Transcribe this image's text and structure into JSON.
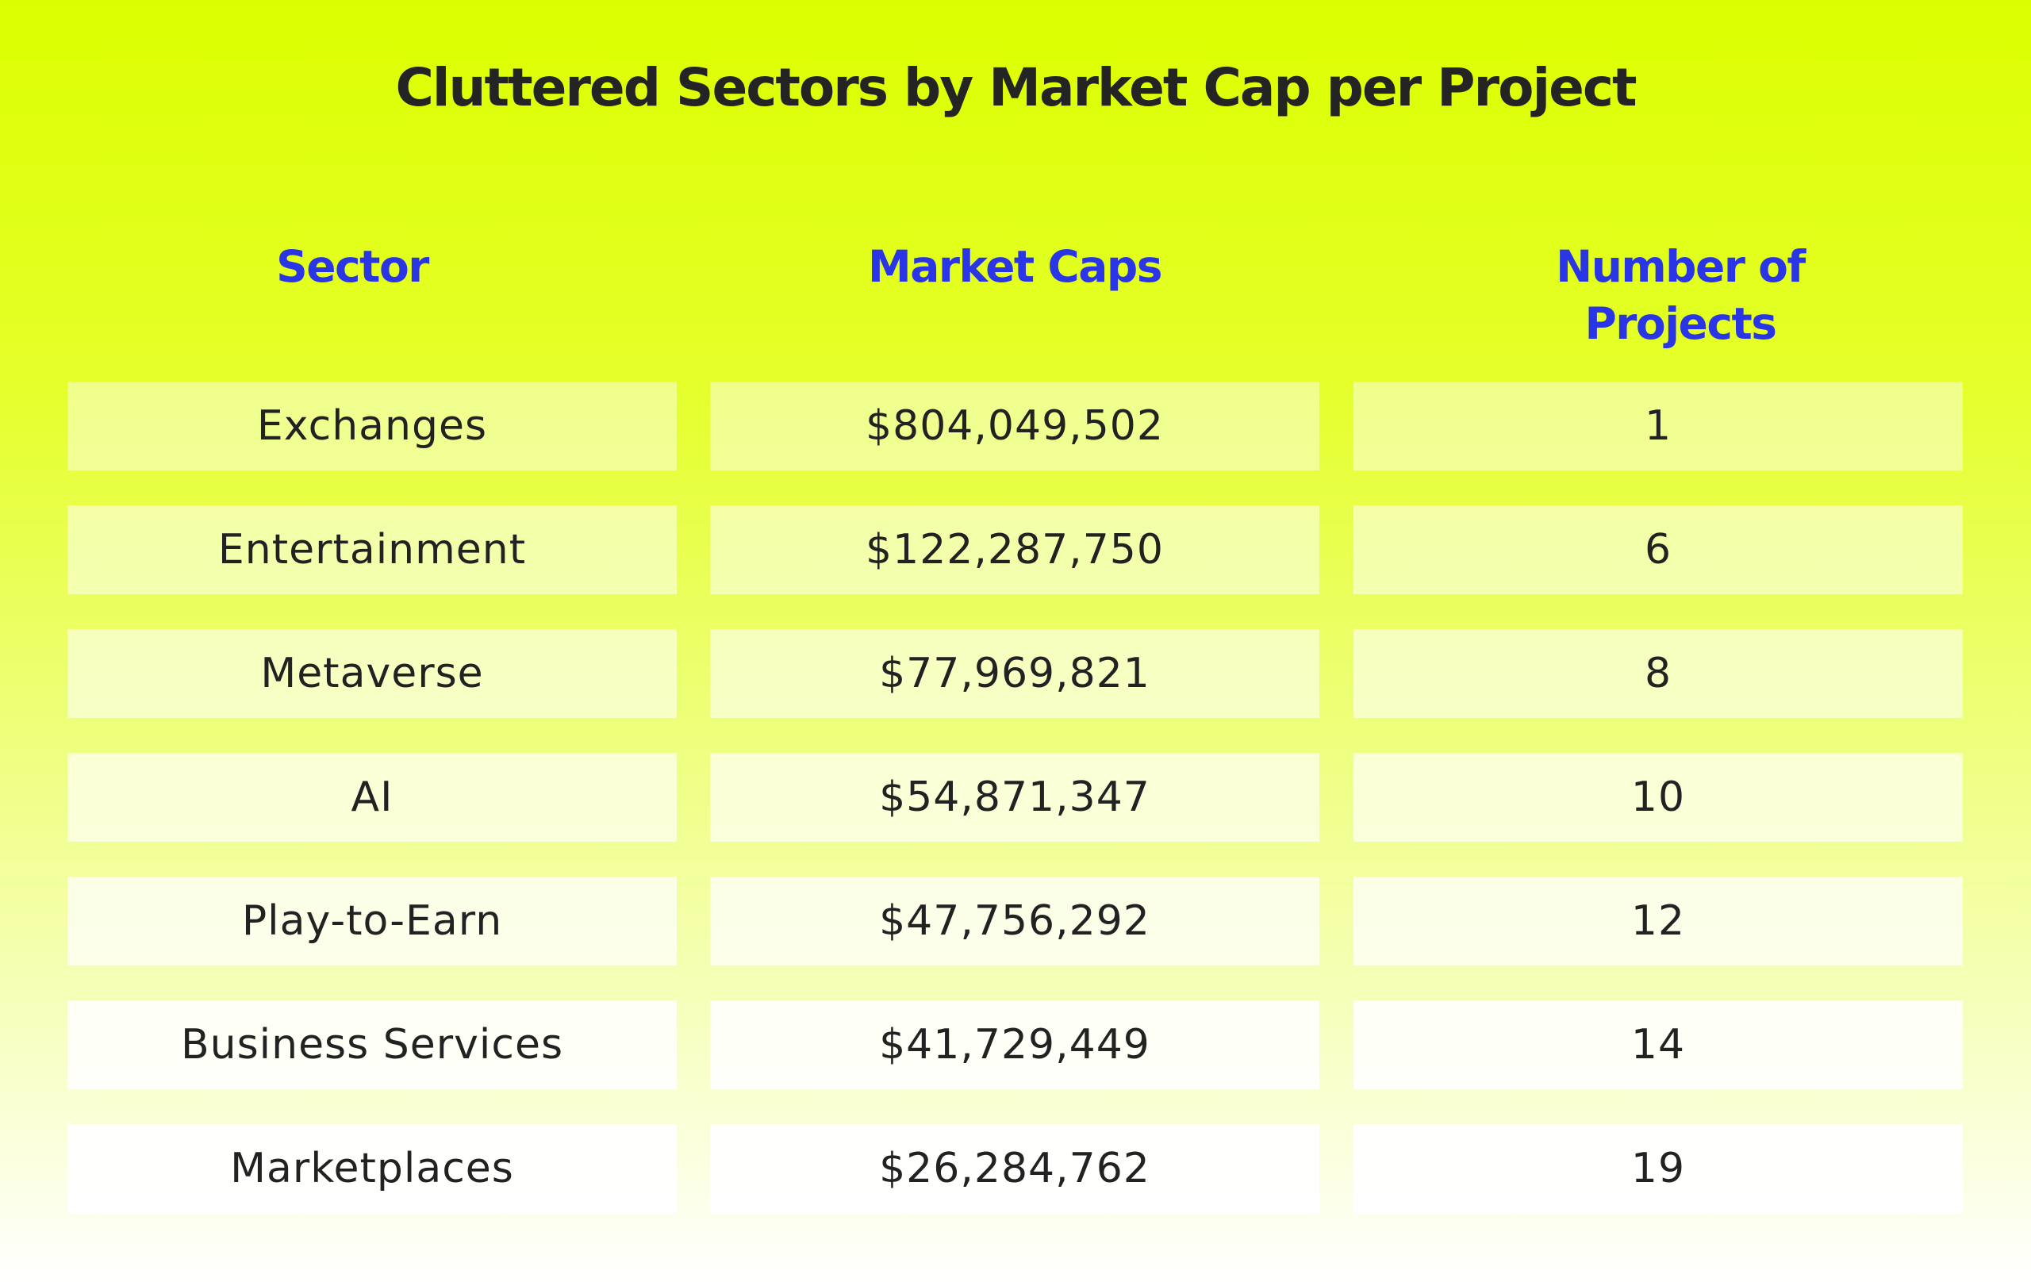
{
  "chart_data": {
    "type": "table",
    "title": "Cluttered Sectors by Market Cap per Project",
    "columns": [
      "Sector",
      "Market Caps",
      "Number of Projects"
    ],
    "rows": [
      {
        "sector": "Exchanges",
        "market_cap": "$804,049,502",
        "projects": "1"
      },
      {
        "sector": "Entertainment",
        "market_cap": "$122,287,750",
        "projects": "6"
      },
      {
        "sector": "Metaverse",
        "market_cap": "$77,969,821",
        "projects": "8"
      },
      {
        "sector": "AI",
        "market_cap": "$54,871,347",
        "projects": "10"
      },
      {
        "sector": "Play-to-Earn",
        "market_cap": "$47,756,292",
        "projects": "12"
      },
      {
        "sector": "Business Services",
        "market_cap": "$41,729,449",
        "projects": "14"
      },
      {
        "sector": "Marketplaces",
        "market_cap": "$26,284,762",
        "projects": "19"
      }
    ]
  },
  "colors": {
    "background_top": "#dcff00",
    "background_bottom": "#ffffff",
    "header_text": "#2a35e6",
    "title_text": "#242424",
    "cell_text": "#222222"
  }
}
